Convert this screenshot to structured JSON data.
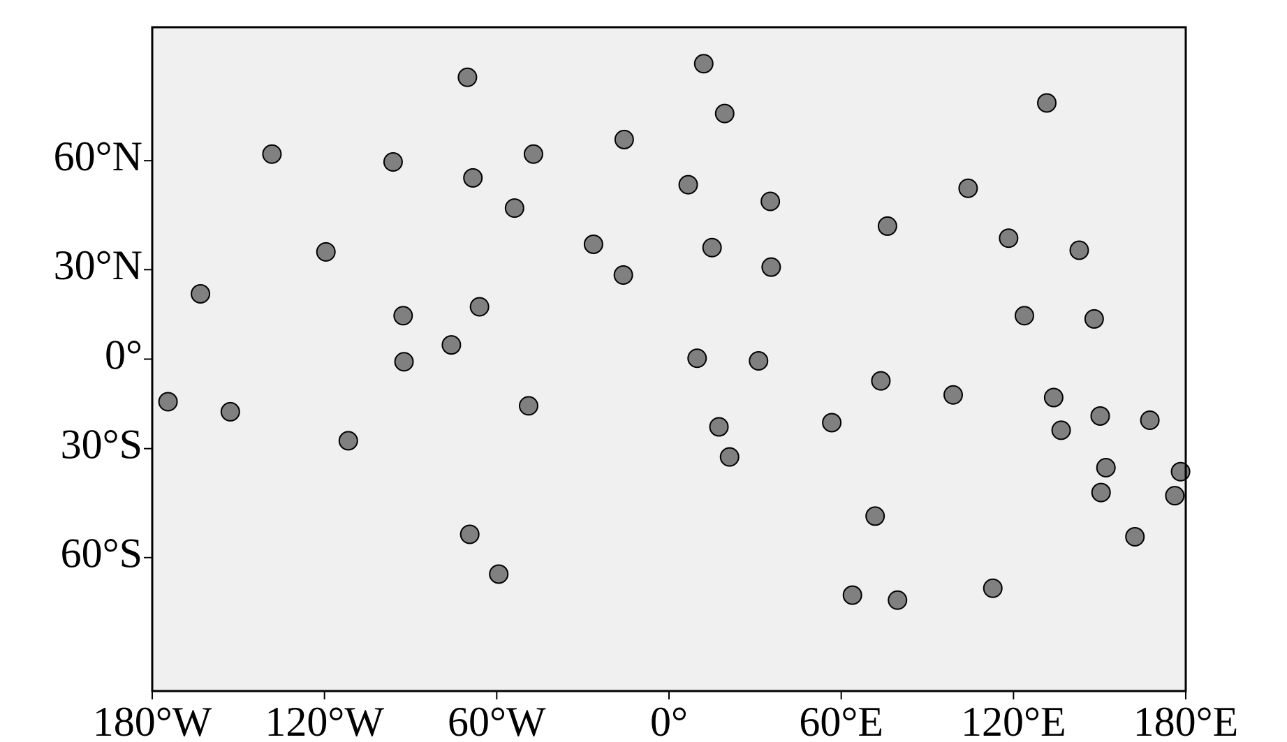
{
  "chart_data": {
    "type": "scatter",
    "projection": "miller",
    "color": "#808080",
    "background": "#f0f0f0",
    "xlim": [
      -180,
      180
    ],
    "ylim": [
      -84,
      84
    ],
    "xticks": [
      {
        "value": -180,
        "label": "180°W"
      },
      {
        "value": -120,
        "label": "120°W"
      },
      {
        "value": -60,
        "label": "60°W"
      },
      {
        "value": 0,
        "label": "0°"
      },
      {
        "value": 60,
        "label": "60°E"
      },
      {
        "value": 120,
        "label": "120°E"
      },
      {
        "value": 180,
        "label": "180°E"
      }
    ],
    "yticks": [
      {
        "value": -60,
        "label": "60°S"
      },
      {
        "value": -30,
        "label": "30°S"
      },
      {
        "value": 0,
        "label": "0°"
      },
      {
        "value": 30,
        "label": "30°N"
      },
      {
        "value": 60,
        "label": "60°N"
      }
    ],
    "x": [
      12.1,
      -70.2,
      131.6,
      19.4,
      -15.6,
      -138.3,
      -96.1,
      -47.2,
      -68.3,
      6.7,
      104.2,
      35.3,
      -53.8,
      76.1,
      118.3,
      -26.3,
      15.0,
      142.9,
      -119.5,
      35.6,
      -15.9,
      -163.2,
      -66.0,
      -92.6,
      123.8,
      148.1,
      -75.8,
      9.8,
      -92.3,
      31.2,
      73.8,
      99.0,
      134.0,
      -174.5,
      -48.9,
      -152.8,
      150.2,
      167.5,
      56.7,
      17.4,
      136.6,
      -111.7,
      21.1,
      152.2,
      178.2,
      150.5,
      176.2,
      71.8,
      -69.4,
      162.3,
      -59.3,
      112.8,
      63.9,
      79.6
    ],
    "values": [
      78.7,
      76.5,
      72.0,
      70.0,
      64.7,
      61.5,
      59.7,
      61.5,
      55.9,
      54.2,
      53.3,
      49.9,
      48.1,
      43.1,
      39.6,
      37.8,
      36.8,
      36.0,
      35.5,
      30.8,
      28.3,
      22.2,
      17.9,
      14.9,
      14.9,
      13.8,
      4.9,
      0.3,
      -0.9,
      -0.6,
      -7.5,
      -12.3,
      -13.2,
      -14.6,
      -16.0,
      -18.0,
      -19.4,
      -20.8,
      -21.6,
      -23.0,
      -24.1,
      -27.5,
      -32.6,
      -35.9,
      -37.1,
      -43.2,
      -44.1,
      -49.7,
      -54.4,
      -55.0,
      -63.7,
      -66.7,
      -68.1,
      -69.1
    ]
  }
}
